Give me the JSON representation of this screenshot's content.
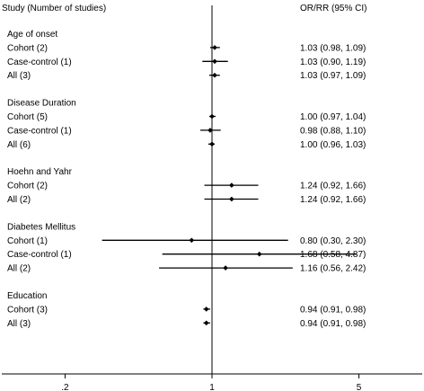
{
  "chart_data": {
    "type": "forest",
    "header": {
      "study_label": "Study (Number of studies)",
      "effect_label": "OR/RR (95% CI)"
    },
    "x_scale": "log",
    "xlim": [
      0.1,
      10
    ],
    "reference_line": 1,
    "x_ticks": [
      {
        "value": 0.2,
        "label": ".2"
      },
      {
        "value": 1,
        "label": "1"
      },
      {
        "value": 5,
        "label": "5"
      }
    ],
    "groups": [
      {
        "title": "Age of onset",
        "rows": [
          {
            "label": "Cohort (2)",
            "est": 1.03,
            "lo": 0.98,
            "hi": 1.09,
            "ci_text": "1.03 (0.98, 1.09)"
          },
          {
            "label": "Case-control (1)",
            "est": 1.03,
            "lo": 0.9,
            "hi": 1.19,
            "ci_text": "1.03 (0.90, 1.19)"
          },
          {
            "label": "All (3)",
            "est": 1.03,
            "lo": 0.97,
            "hi": 1.09,
            "ci_text": "1.03 (0.97, 1.09)"
          }
        ]
      },
      {
        "title": "Disease Duration",
        "rows": [
          {
            "label": "Cohort (5)",
            "est": 1.0,
            "lo": 0.97,
            "hi": 1.04,
            "ci_text": "1.00 (0.97, 1.04)"
          },
          {
            "label": "Case-control (1)",
            "est": 0.98,
            "lo": 0.88,
            "hi": 1.1,
            "ci_text": "0.98 (0.88, 1.10)"
          },
          {
            "label": "All (6)",
            "est": 1.0,
            "lo": 0.96,
            "hi": 1.03,
            "ci_text": "1.00 (0.96, 1.03)"
          }
        ]
      },
      {
        "title": "Hoehn and Yahr",
        "rows": [
          {
            "label": "Cohort (2)",
            "est": 1.24,
            "lo": 0.92,
            "hi": 1.66,
            "ci_text": "1.24 (0.92, 1.66)"
          },
          {
            "label": "All (2)",
            "est": 1.24,
            "lo": 0.92,
            "hi": 1.66,
            "ci_text": "1.24 (0.92, 1.66)"
          }
        ]
      },
      {
        "title": "Diabetes Mellitus",
        "rows": [
          {
            "label": "Cohort (1)",
            "est": 0.8,
            "lo": 0.3,
            "hi": 2.3,
            "ci_text": "0.80 (0.30, 2.30)"
          },
          {
            "label": "Case-control (1)",
            "est": 1.68,
            "lo": 0.58,
            "hi": 4.87,
            "ci_text": "1.68 (0.58, 4.87)"
          },
          {
            "label": "All (2)",
            "est": 1.16,
            "lo": 0.56,
            "hi": 2.42,
            "ci_text": "1.16 (0.56, 2.42)"
          }
        ]
      },
      {
        "title": "Education",
        "rows": [
          {
            "label": "Cohort (3)",
            "est": 0.94,
            "lo": 0.91,
            "hi": 0.98,
            "ci_text": "0.94 (0.91, 0.98)"
          },
          {
            "label": "All (3)",
            "est": 0.94,
            "lo": 0.91,
            "hi": 0.98,
            "ci_text": "0.94 (0.91, 0.98)"
          }
        ]
      }
    ]
  }
}
